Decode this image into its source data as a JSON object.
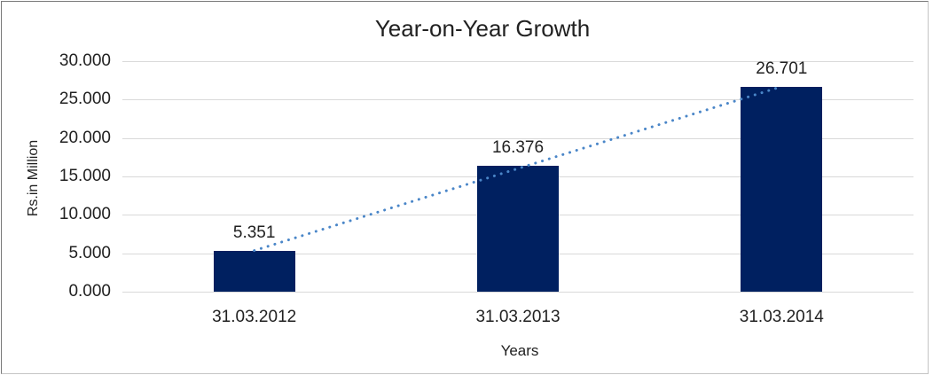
{
  "chart_data": {
    "type": "bar",
    "title": "Year-on-Year Growth",
    "xlabel": "Years",
    "ylabel": "Rs.in Million",
    "categories": [
      "31.03.2012",
      "31.03.2013",
      "31.03.2014"
    ],
    "values": [
      5.351,
      16.376,
      26.701
    ],
    "data_labels": [
      "5.351",
      "16.376",
      "26.701"
    ],
    "ytick_labels": [
      "0.000",
      "5.000",
      "10.000",
      "15.000",
      "20.000",
      "25.000",
      "30.000"
    ],
    "ylim": [
      0,
      30
    ],
    "grid": true,
    "legend": false,
    "has_trendline": true,
    "colors": {
      "bar": "#002060",
      "trendline": "#4a86c8",
      "gridline": "#d9d9d9",
      "text": "#212121"
    }
  }
}
